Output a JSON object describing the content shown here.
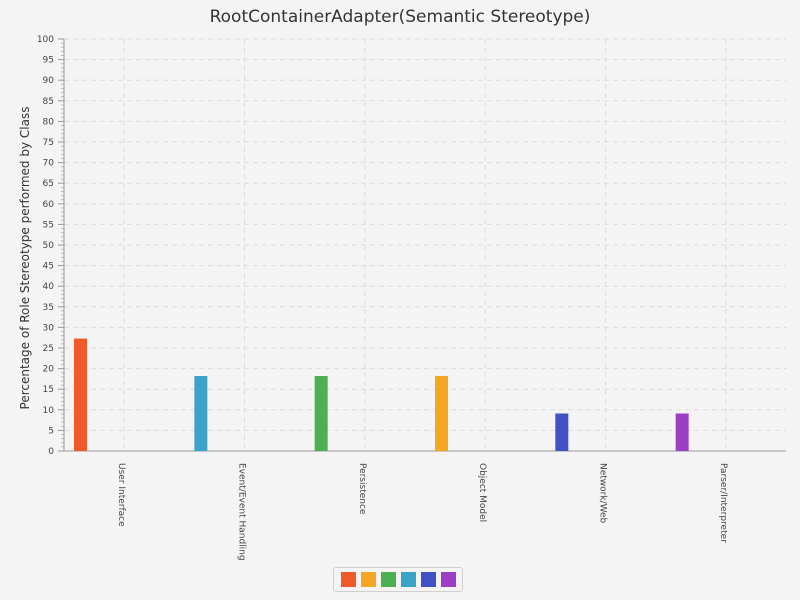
{
  "chart_data": {
    "type": "bar",
    "title": "RootContainerAdapter(Semantic Stereotype)",
    "xlabel": "",
    "ylabel": "Percentage of Role Stereotype performed by Class",
    "ylim": [
      0,
      100
    ],
    "ytick_step": 5,
    "grid": true,
    "legend_position": "bottom-center",
    "series": [
      {
        "color": "#f05a28",
        "values": [
          27.3,
          0,
          0,
          0,
          0,
          0
        ]
      },
      {
        "color": "#f5a623",
        "values": [
          0,
          0,
          0,
          18.2,
          0,
          0
        ]
      },
      {
        "color": "#4caf50",
        "values": [
          0,
          0,
          18.2,
          0,
          0,
          0
        ]
      },
      {
        "color": "#3aa3c7",
        "values": [
          0,
          18.2,
          0,
          0,
          0,
          0
        ]
      },
      {
        "color": "#3f51c5",
        "values": [
          0,
          0,
          0,
          0,
          9.1,
          0
        ]
      },
      {
        "color": "#9c3fc5",
        "values": [
          0,
          0,
          0,
          0,
          0,
          9.1
        ]
      }
    ],
    "categories": [
      "User Interface",
      "Event/Event Handling",
      "Persistence",
      "Object Model",
      "Network/Web",
      "Parser/Interpreter"
    ]
  }
}
